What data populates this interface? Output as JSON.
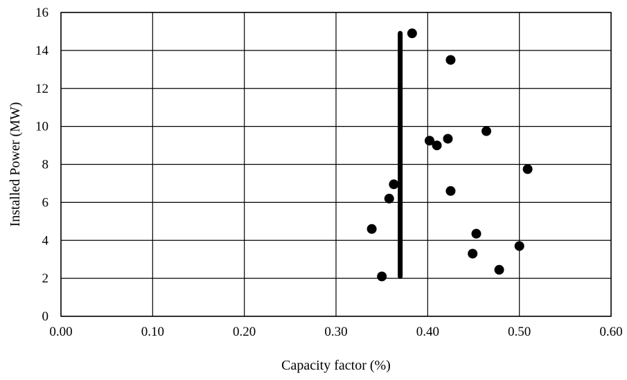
{
  "chart_data": {
    "type": "scatter",
    "title": "",
    "xlabel": "Capacity factor (%)",
    "ylabel": "Installed Power (MW)",
    "xlim": [
      0.0,
      0.6
    ],
    "ylim": [
      0,
      16
    ],
    "x_ticks": [
      "0.00",
      "0.10",
      "0.20",
      "0.30",
      "0.40",
      "0.50",
      "0.60"
    ],
    "y_ticks": [
      "0",
      "2",
      "4",
      "6",
      "8",
      "10",
      "12",
      "14",
      "16"
    ],
    "grid": true,
    "legend": "none",
    "marker_color": "#000000",
    "series": [
      {
        "points": [
          {
            "x": 0.383,
            "y": 14.9
          },
          {
            "x": 0.425,
            "y": 13.5
          },
          {
            "x": 0.464,
            "y": 9.75
          },
          {
            "x": 0.402,
            "y": 9.25
          },
          {
            "x": 0.41,
            "y": 9.0
          },
          {
            "x": 0.422,
            "y": 9.35
          },
          {
            "x": 0.509,
            "y": 7.75
          },
          {
            "x": 0.363,
            "y": 6.95
          },
          {
            "x": 0.425,
            "y": 6.6
          },
          {
            "x": 0.358,
            "y": 6.2
          },
          {
            "x": 0.339,
            "y": 4.6
          },
          {
            "x": 0.453,
            "y": 4.35
          },
          {
            "x": 0.5,
            "y": 3.7
          },
          {
            "x": 0.449,
            "y": 3.3
          },
          {
            "x": 0.478,
            "y": 2.45
          },
          {
            "x": 0.35,
            "y": 2.1
          }
        ]
      }
    ],
    "vertical_line": {
      "x": 0.37,
      "y_from": 2.1,
      "y_to": 14.9
    }
  }
}
